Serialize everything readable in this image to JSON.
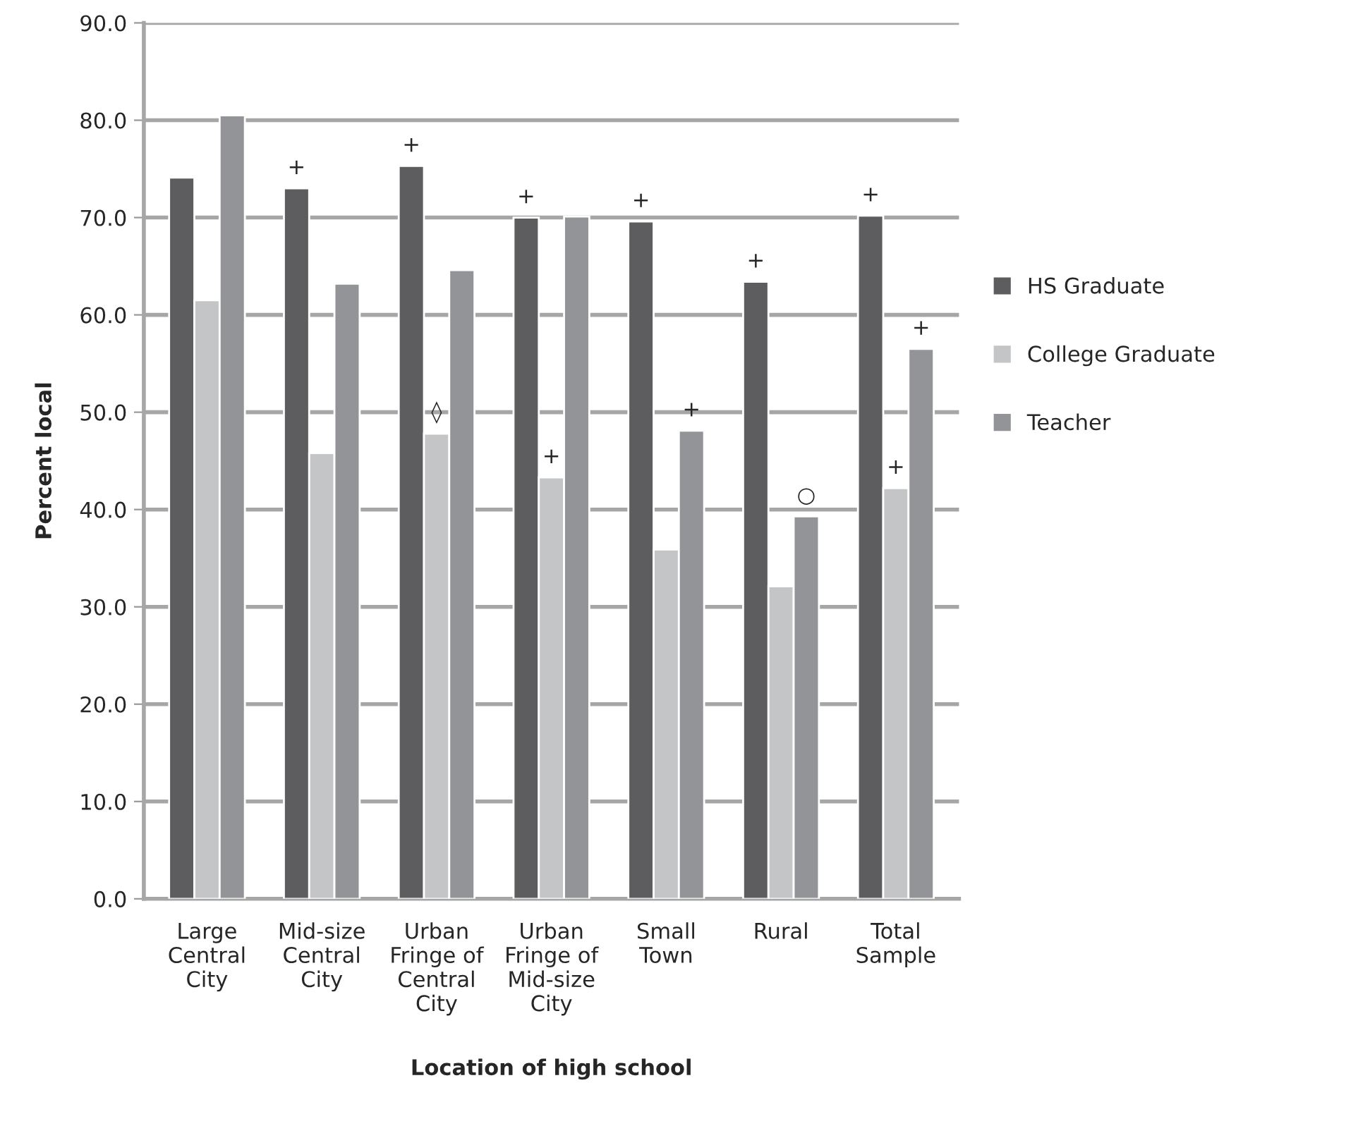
{
  "chart_data": {
    "type": "bar",
    "xlabel": "Location of high school",
    "ylabel": "Percent local",
    "categories": [
      "Large\nCentral\nCity",
      "Mid-size\nCentral\nCity",
      "Urban\nFringe of\nCentral\nCity",
      "Urban\nFringe of\nMid-size\nCity",
      "Small\nTown",
      "Rural",
      "Total\nSample"
    ],
    "series": [
      {
        "name": "HS Graduate",
        "color": "#5d5d5f",
        "values": [
          74.1,
          73.0,
          75.3,
          70.0,
          69.6,
          63.4,
          70.2
        ],
        "value_labels": [
          null,
          "+",
          "+",
          "+",
          "+",
          "+",
          "+"
        ]
      },
      {
        "name": "College Graduate",
        "color": "#c4c5c7",
        "values": [
          61.5,
          45.8,
          47.8,
          43.3,
          35.9,
          32.1,
          42.2
        ],
        "value_labels": [
          null,
          null,
          "◊",
          "+",
          null,
          null,
          "+"
        ]
      },
      {
        "name": "Teacher",
        "color": "#939497",
        "values": [
          80.5,
          63.2,
          64.6,
          70.1,
          48.1,
          39.3,
          56.5
        ],
        "value_labels": [
          null,
          null,
          null,
          null,
          "+",
          "○",
          "+"
        ]
      }
    ],
    "ylim": [
      0,
      90
    ],
    "yticks": [
      {
        "value": 0,
        "label": "0.0"
      },
      {
        "value": 10,
        "label": "10.0"
      },
      {
        "value": 20,
        "label": "20.0"
      },
      {
        "value": 30,
        "label": "30.0"
      },
      {
        "value": 40,
        "label": "40.0"
      },
      {
        "value": 50,
        "label": "50.0"
      },
      {
        "value": 60,
        "label": "60.0"
      },
      {
        "value": 70,
        "label": "70.0"
      },
      {
        "value": 80,
        "label": "80.0"
      },
      {
        "value": 90,
        "label": "90.0"
      }
    ],
    "grid": "y",
    "legend": "right"
  }
}
